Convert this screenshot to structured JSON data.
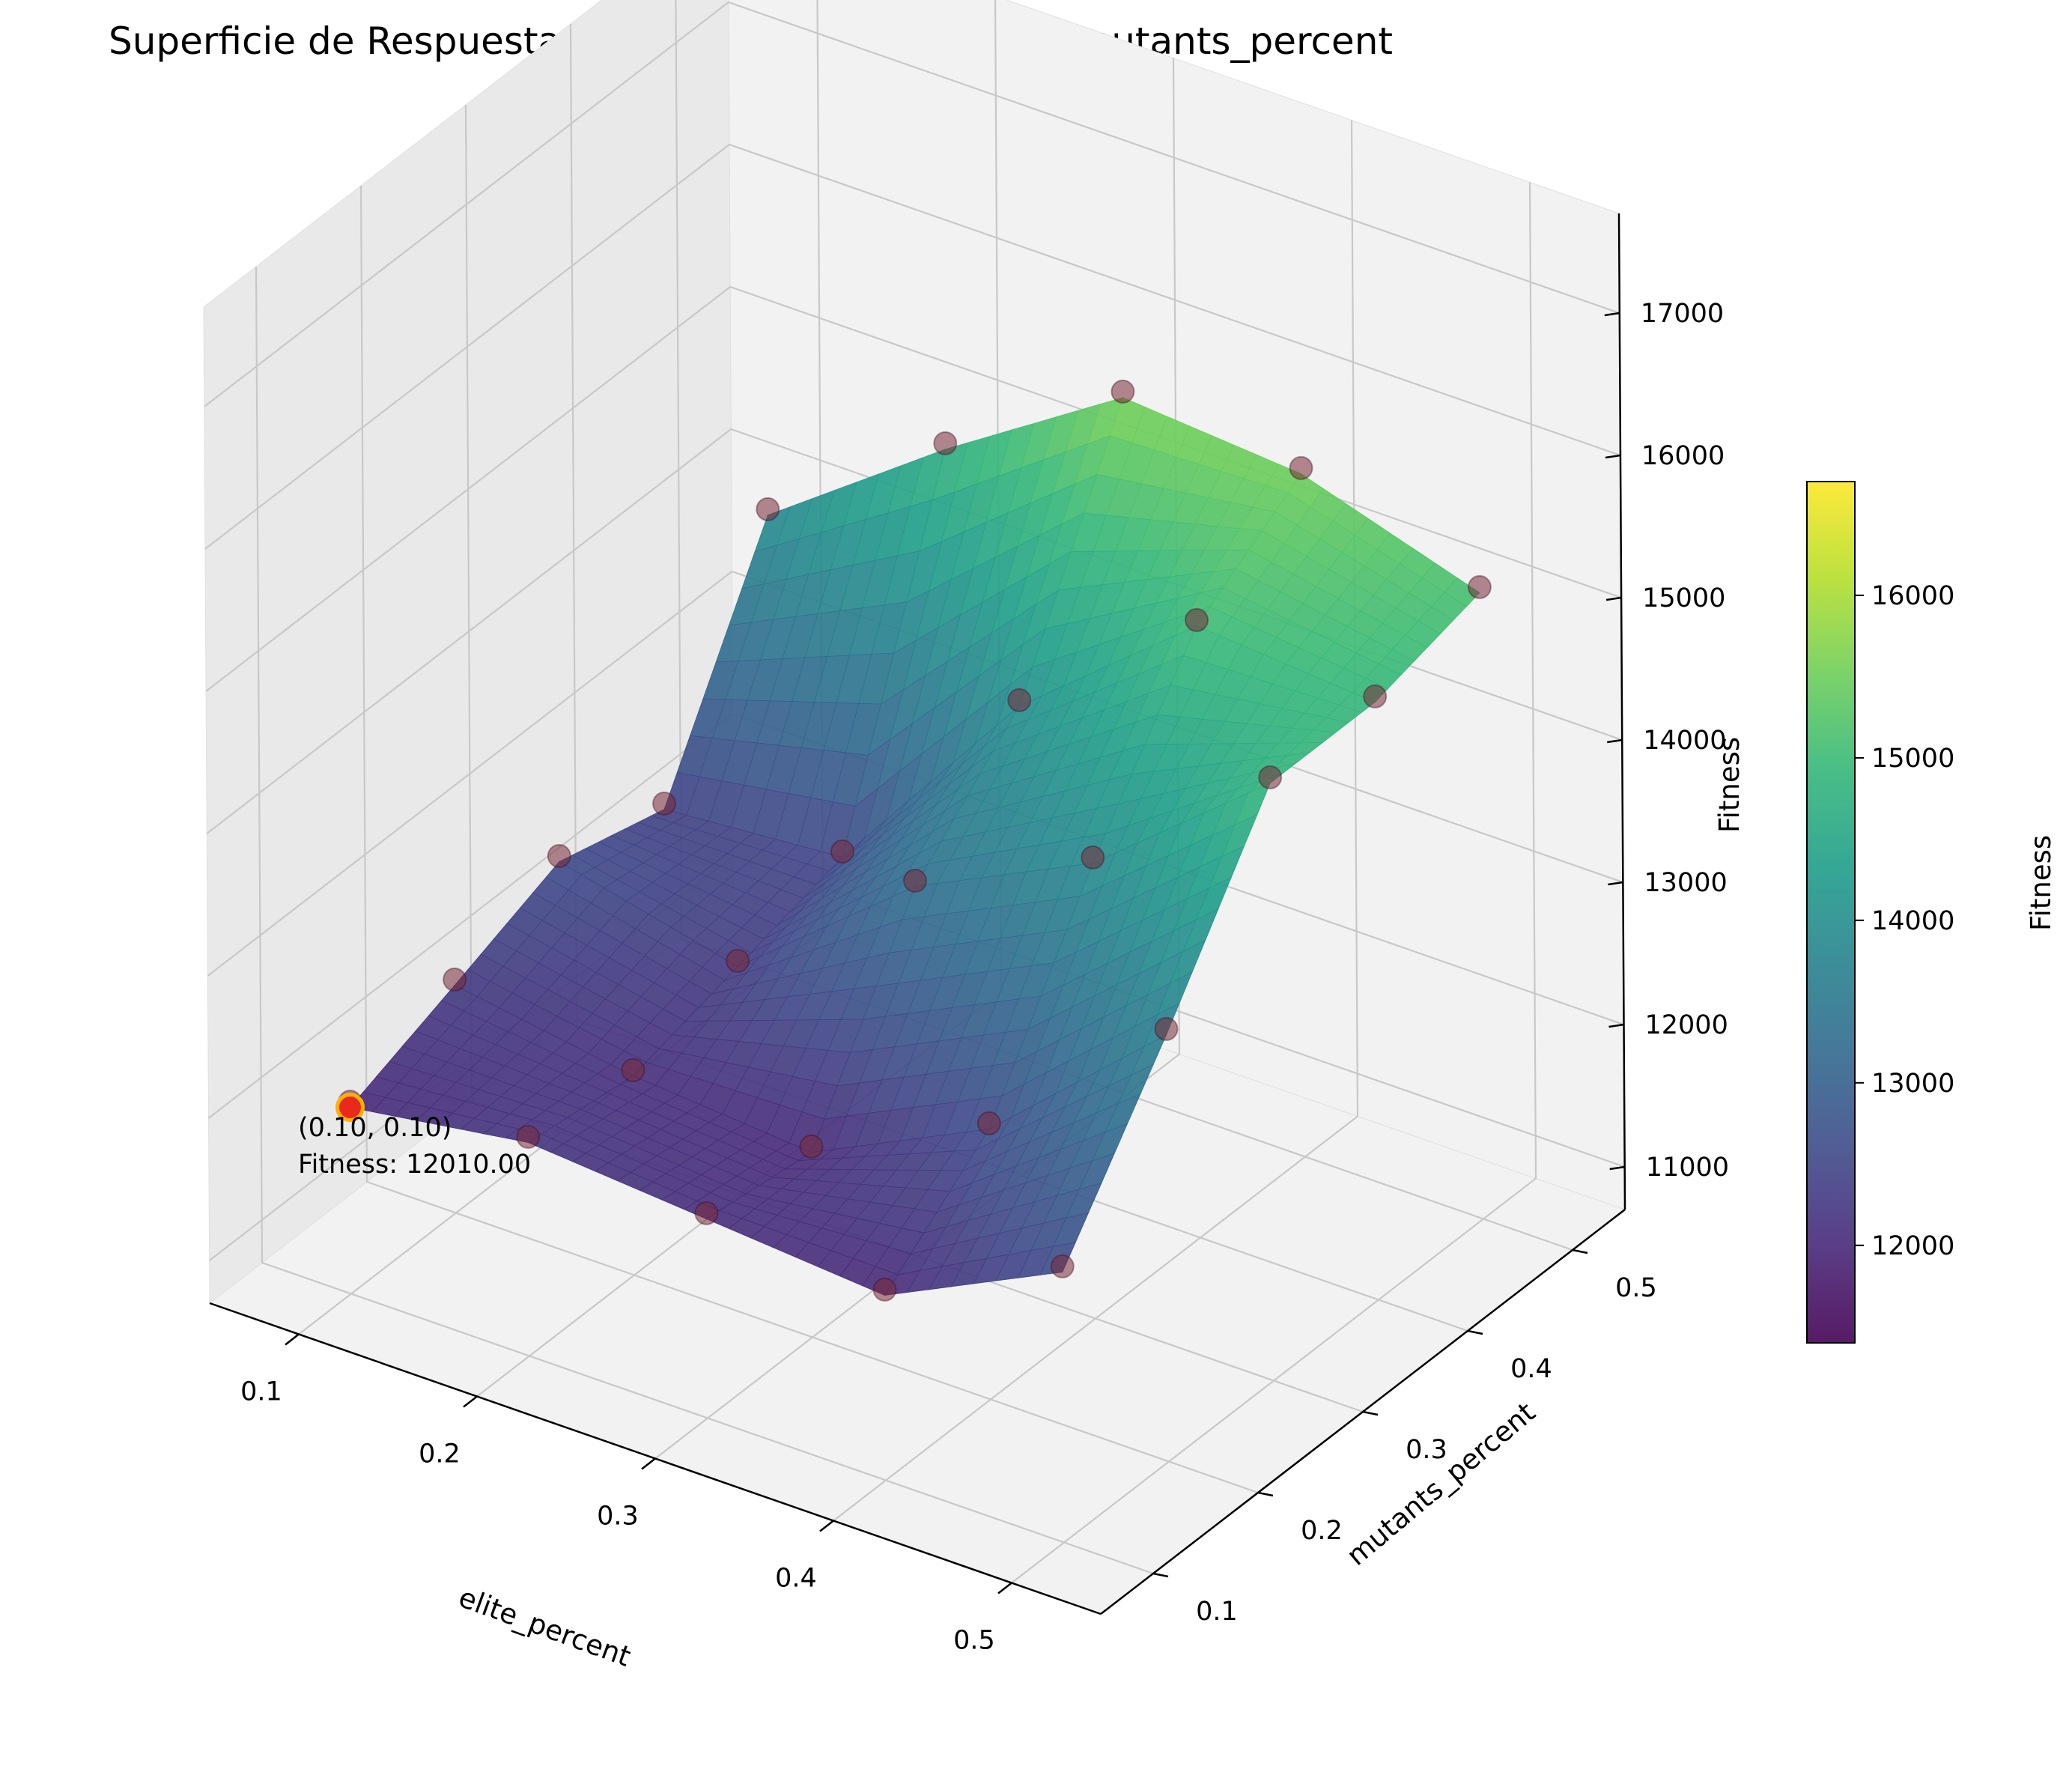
{
  "chart_data": {
    "type": "surface3d",
    "title": "Superficie de Respuesta para p09: elite_percent vs mutants_percent",
    "xlabel": "elite_percent",
    "ylabel": "mutants_percent",
    "zlabel": "Fitness",
    "x_ticks": [
      "0.1",
      "0.2",
      "0.3",
      "0.4",
      "0.5"
    ],
    "y_ticks": [
      "0.1",
      "0.2",
      "0.3",
      "0.4",
      "0.5"
    ],
    "z_ticks": [
      "11000",
      "12000",
      "13000",
      "14000",
      "15000",
      "16000",
      "17000"
    ],
    "xlim": [
      0.05,
      0.55
    ],
    "ylim": [
      0.05,
      0.55
    ],
    "zlim": [
      10700,
      17700
    ],
    "grid": true,
    "colormap": "viridis",
    "colorbar": {
      "label": "Fitness",
      "ticks": [
        "12000",
        "13000",
        "14000",
        "15000",
        "16000"
      ],
      "range": [
        11400,
        16700
      ],
      "colors": [
        "#440154",
        "#482878",
        "#3e4a89",
        "#31688e",
        "#26828e",
        "#1f9e89",
        "#35b779",
        "#6ece58",
        "#b5de2b",
        "#fde725"
      ]
    },
    "sample_points": [
      {
        "x": 0.1,
        "y": 0.1,
        "fitness": 12010
      },
      {
        "x": 0.1,
        "y": 0.2,
        "fitness": 12300
      },
      {
        "x": 0.1,
        "y": 0.3,
        "fitness": 12600
      },
      {
        "x": 0.1,
        "y": 0.4,
        "fitness": 12400
      },
      {
        "x": 0.1,
        "y": 0.5,
        "fitness": 13900
      },
      {
        "x": 0.2,
        "y": 0.1,
        "fitness": 12200
      },
      {
        "x": 0.2,
        "y": 0.2,
        "fitness": 12100
      },
      {
        "x": 0.2,
        "y": 0.3,
        "fitness": 12300
      },
      {
        "x": 0.2,
        "y": 0.4,
        "fitness": 12500
      },
      {
        "x": 0.2,
        "y": 0.5,
        "fitness": 14800
      },
      {
        "x": 0.3,
        "y": 0.1,
        "fitness": 12100
      },
      {
        "x": 0.3,
        "y": 0.2,
        "fitness": 12000
      },
      {
        "x": 0.3,
        "y": 0.3,
        "fitness": 13300
      },
      {
        "x": 0.3,
        "y": 0.4,
        "fitness": 14000
      },
      {
        "x": 0.3,
        "y": 0.5,
        "fitness": 15600
      },
      {
        "x": 0.4,
        "y": 0.1,
        "fitness": 12000
      },
      {
        "x": 0.4,
        "y": 0.2,
        "fitness": 12600
      },
      {
        "x": 0.4,
        "y": 0.3,
        "fitness": 13900
      },
      {
        "x": 0.4,
        "y": 0.4,
        "fitness": 15000
      },
      {
        "x": 0.4,
        "y": 0.5,
        "fitness": 15500
      },
      {
        "x": 0.5,
        "y": 0.1,
        "fitness": 12600
      },
      {
        "x": 0.5,
        "y": 0.2,
        "fitness": 13700
      },
      {
        "x": 0.5,
        "y": 0.3,
        "fitness": 14900
      },
      {
        "x": 0.5,
        "y": 0.4,
        "fitness": 14900
      },
      {
        "x": 0.5,
        "y": 0.5,
        "fitness": 15100
      }
    ],
    "best_point": {
      "x": 0.1,
      "y": 0.1,
      "fitness": 12010
    },
    "annotation_line1": "(0.10, 0.10)",
    "annotation_line2": "Fitness: 12010.00"
  }
}
